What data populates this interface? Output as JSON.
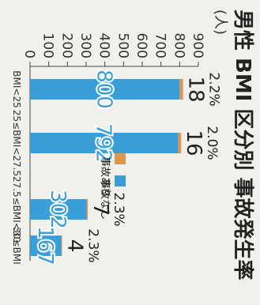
{
  "chart_data": {
    "type": "bar",
    "stacked": true,
    "title": "男性 BMI 区分別 事故発生率",
    "ylabel": "(人)",
    "xlabel": "",
    "ylim": [
      0,
      900
    ],
    "yticks": [
      0,
      100,
      200,
      300,
      400,
      500,
      600,
      700,
      800,
      900
    ],
    "categories": [
      "BMI<25",
      "25≤BMI<27.5",
      "27.5≤BMI<30",
      "30≤BMI"
    ],
    "series": [
      {
        "name": "事故なし",
        "color": "#3a9fd8",
        "values": [
          800,
          792,
          302,
          167
        ]
      },
      {
        "name": "事故あり",
        "color": "#e0954a",
        "values": [
          18,
          16,
          7,
          4
        ]
      }
    ],
    "rates": [
      "2.2%",
      "2.0%",
      "2.3%",
      "2.3%"
    ],
    "legend": {
      "position": "center"
    },
    "grid": false
  }
}
